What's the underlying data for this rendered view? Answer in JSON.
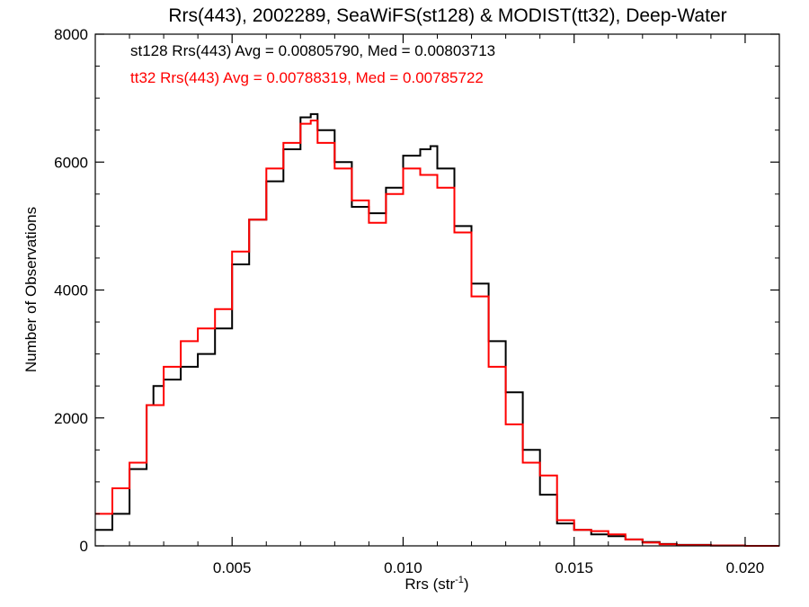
{
  "chart_data": {
    "type": "line",
    "title": "Rrs(443), 2002289, SeaWiFS(st128) & MODIST(tt32), Deep-Water",
    "xlabel": "Rrs (str",
    "xlabel_sup": "-1",
    "xlabel_close": ")",
    "ylabel": "Number of Observations",
    "xlim": [
      0.001,
      0.021
    ],
    "ylim": [
      0,
      8000
    ],
    "x_ticks": [
      {
        "value": 0.005,
        "label": "0.005"
      },
      {
        "value": 0.01,
        "label": "0.010"
      },
      {
        "value": 0.015,
        "label": "0.015"
      },
      {
        "value": 0.02,
        "label": "0.020"
      }
    ],
    "y_ticks": [
      {
        "value": 0,
        "label": "0"
      },
      {
        "value": 2000,
        "label": "2000"
      },
      {
        "value": 4000,
        "label": "4000"
      },
      {
        "value": 6000,
        "label": "6000"
      },
      {
        "value": 8000,
        "label": "8000"
      }
    ],
    "grid": false,
    "annotations": [
      {
        "text": "st128 Rrs(443) Avg = 0.00805790, Med = 0.00803713",
        "color": "#000000"
      },
      {
        "text": "tt32 Rrs(443) Avg = 0.00788319, Med = 0.00785722",
        "color": "#ff0000"
      }
    ],
    "series": [
      {
        "color": "#000000",
        "step": true,
        "x": [
          0.001,
          0.0015,
          0.002,
          0.0025,
          0.0027,
          0.003,
          0.0035,
          0.004,
          0.0045,
          0.005,
          0.0055,
          0.006,
          0.0065,
          0.007,
          0.0073,
          0.0075,
          0.008,
          0.0085,
          0.009,
          0.0095,
          0.01,
          0.0105,
          0.0108,
          0.011,
          0.0115,
          0.012,
          0.0125,
          0.013,
          0.0135,
          0.014,
          0.0145,
          0.015,
          0.0155,
          0.016,
          0.0165,
          0.017,
          0.0175,
          0.018,
          0.019,
          0.02,
          0.021
        ],
        "y": [
          250,
          500,
          1200,
          2200,
          2500,
          2600,
          2800,
          3000,
          3400,
          4400,
          5100,
          5700,
          6200,
          6700,
          6750,
          6500,
          6000,
          5300,
          5200,
          5600,
          6100,
          6200,
          6250,
          5900,
          5000,
          4100,
          3200,
          2400,
          1500,
          800,
          350,
          250,
          180,
          150,
          100,
          60,
          30,
          15,
          5,
          0,
          0
        ]
      },
      {
        "color": "#ff0000",
        "step": true,
        "x": [
          0.001,
          0.0015,
          0.002,
          0.0025,
          0.003,
          0.0035,
          0.004,
          0.0045,
          0.005,
          0.0055,
          0.006,
          0.0065,
          0.007,
          0.0073,
          0.0075,
          0.008,
          0.0085,
          0.009,
          0.0095,
          0.01,
          0.0105,
          0.011,
          0.0115,
          0.012,
          0.0125,
          0.013,
          0.0135,
          0.014,
          0.0145,
          0.015,
          0.0155,
          0.016,
          0.0165,
          0.017,
          0.0175,
          0.018,
          0.019,
          0.02,
          0.021
        ],
        "y": [
          500,
          900,
          1300,
          2200,
          2800,
          3200,
          3400,
          3700,
          4600,
          5100,
          5900,
          6300,
          6600,
          6650,
          6300,
          5900,
          5400,
          5050,
          5500,
          5900,
          5800,
          5600,
          4900,
          3900,
          2800,
          1900,
          1300,
          1100,
          400,
          250,
          230,
          180,
          100,
          50,
          25,
          10,
          5,
          0,
          0
        ]
      }
    ]
  }
}
